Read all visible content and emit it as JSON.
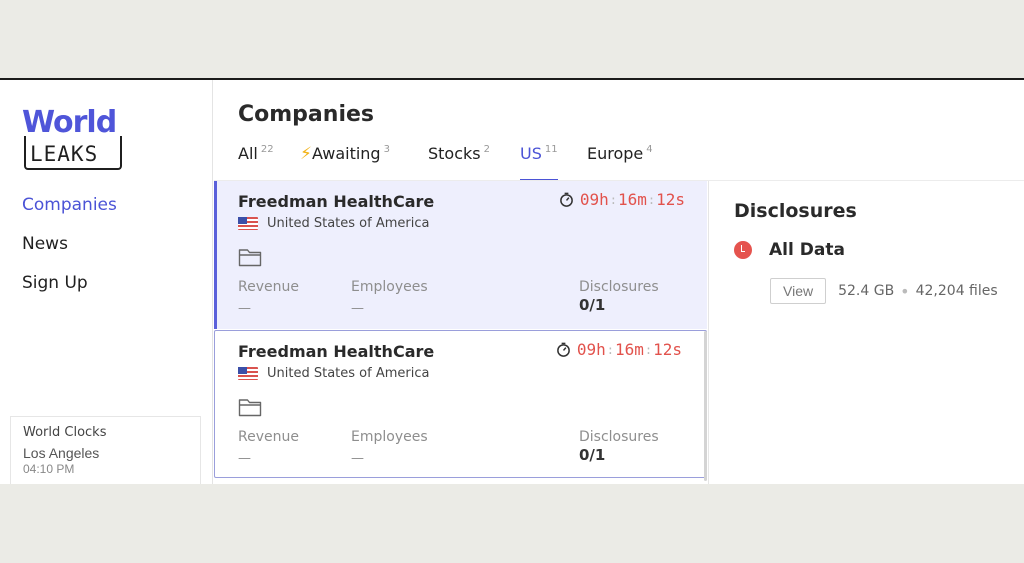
{
  "logo": {
    "word1": "World",
    "word2": "LEAKS"
  },
  "nav": [
    {
      "label": "Companies",
      "active": true
    },
    {
      "label": "News"
    },
    {
      "label": "Sign Up"
    }
  ],
  "world_clocks": {
    "title": "World Clocks",
    "city": "Los Angeles",
    "time": "04:10 PM"
  },
  "page_title": "Companies",
  "tabs": [
    {
      "label": "All",
      "count": "22"
    },
    {
      "label": "Awaiting",
      "count": "3",
      "icon": "lightning-icon"
    },
    {
      "label": "Stocks",
      "count": "2"
    },
    {
      "label": "US",
      "count": "11",
      "active": true
    },
    {
      "label": "Europe",
      "count": "4"
    }
  ],
  "cards": [
    {
      "name": "Freedman HealthCare",
      "country": "United States of America",
      "timer": {
        "h": "09h",
        "m": "16m",
        "s": "12s"
      },
      "revenue_label": "Revenue",
      "revenue": "—",
      "employees_label": "Employees",
      "employees": "—",
      "disclosures_label": "Disclosures",
      "disclosures": "0/1"
    },
    {
      "name": "Freedman HealthCare",
      "country": "United States of America",
      "timer": {
        "h": "09h",
        "m": "16m",
        "s": "12s"
      },
      "revenue_label": "Revenue",
      "revenue": "—",
      "employees_label": "Employees",
      "employees": "—",
      "disclosures_label": "Disclosures",
      "disclosures": "0/1"
    }
  ],
  "detail": {
    "title": "Disclosures",
    "item": "All Data",
    "view_label": "View",
    "size": "52.4 GB",
    "files": "42,204 files"
  },
  "colors": {
    "accent": "#4b53d6",
    "timer": "#e2524c",
    "selected_bg": "#eeeffd"
  }
}
